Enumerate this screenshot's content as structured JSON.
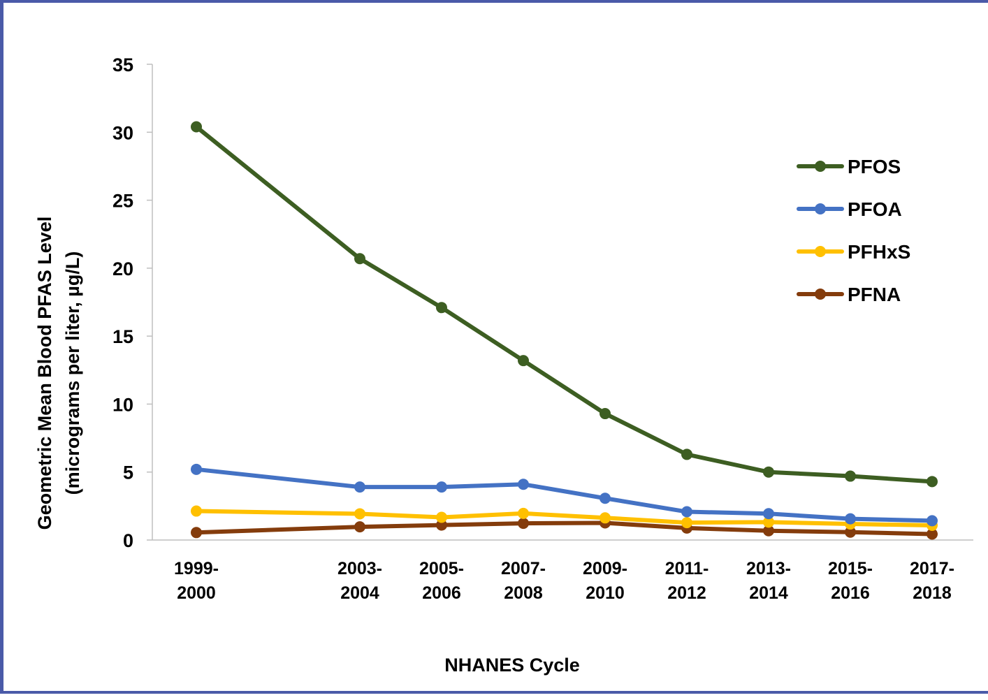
{
  "chart_data": {
    "type": "line",
    "title": "",
    "xlabel": "NHANES Cycle",
    "ylabel_line1": "Geometric Mean Blood PFAS Level",
    "ylabel_line2": "(micrograms per liter, µg/L)",
    "ylim": [
      0,
      35
    ],
    "y_ticks": [
      0,
      5,
      10,
      15,
      20,
      25,
      30,
      35
    ],
    "y_tick_labels": [
      "0",
      "5",
      "10",
      "15",
      "20",
      "25",
      "30",
      "35"
    ],
    "grid": false,
    "legend_position": "top-right",
    "x": [
      1999,
      2003,
      2005,
      2007,
      2009,
      2011,
      2013,
      2015,
      2017
    ],
    "categories": [
      [
        "1999-",
        "2000"
      ],
      [
        "2003-",
        "2004"
      ],
      [
        "2005-",
        "2006"
      ],
      [
        "2007-",
        "2008"
      ],
      [
        "2009-",
        "2010"
      ],
      [
        "2011-",
        "2012"
      ],
      [
        "2013-",
        "2014"
      ],
      [
        "2015-",
        "2016"
      ],
      [
        "2017-",
        "2018"
      ]
    ],
    "series": [
      {
        "name": "PFOS",
        "color": "#3d5e22",
        "values": [
          30.4,
          20.7,
          17.1,
          13.2,
          9.3,
          6.3,
          5.0,
          4.7,
          4.3
        ]
      },
      {
        "name": "PFOA",
        "color": "#4472c4",
        "values": [
          5.2,
          3.9,
          3.9,
          4.1,
          3.07,
          2.08,
          1.94,
          1.56,
          1.42
        ]
      },
      {
        "name": "PFHxS",
        "color": "#ffc000",
        "values": [
          2.13,
          1.93,
          1.67,
          1.96,
          1.63,
          1.28,
          1.32,
          1.18,
          1.08
        ]
      },
      {
        "name": "PFNA",
        "color": "#843c0c",
        "values": [
          0.55,
          0.97,
          1.1,
          1.23,
          1.26,
          0.88,
          0.68,
          0.58,
          0.44
        ]
      }
    ]
  }
}
